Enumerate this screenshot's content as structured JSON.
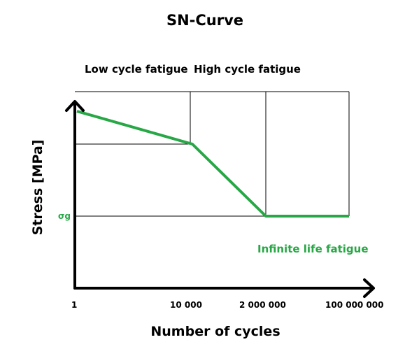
{
  "title": "SN-Curve",
  "regions": {
    "low_cycle": "Low cycle fatigue",
    "high_cycle": "High cycle fatigue",
    "infinite_life": "Infinite life fatigue"
  },
  "axes": {
    "ylabel": "Stress [MPa]",
    "xlabel": "Number of cycles",
    "x_ticks": [
      "1",
      "10 000",
      "2 000 000",
      "100 000 000"
    ],
    "fatigue_limit_label": "σg"
  },
  "colors": {
    "curve": "#27a745",
    "axis": "#000000",
    "grid": "#000000",
    "text": "#000000"
  },
  "chart_data": {
    "type": "line",
    "title": "SN-Curve",
    "xlabel": "Number of cycles",
    "ylabel": "Stress [MPa]",
    "x_scale": "log",
    "x_ticks": [
      1,
      10000,
      2000000,
      100000000
    ],
    "series": [
      {
        "x": [
          1,
          10000,
          2000000,
          100000000
        ],
        "y_description_points": [
          "high",
          "medium",
          "σg",
          "σg"
        ]
      }
    ],
    "annotations": [
      "Low cycle fatigue",
      "High cycle fatigue",
      "Infinite life fatigue",
      "σg"
    ]
  }
}
